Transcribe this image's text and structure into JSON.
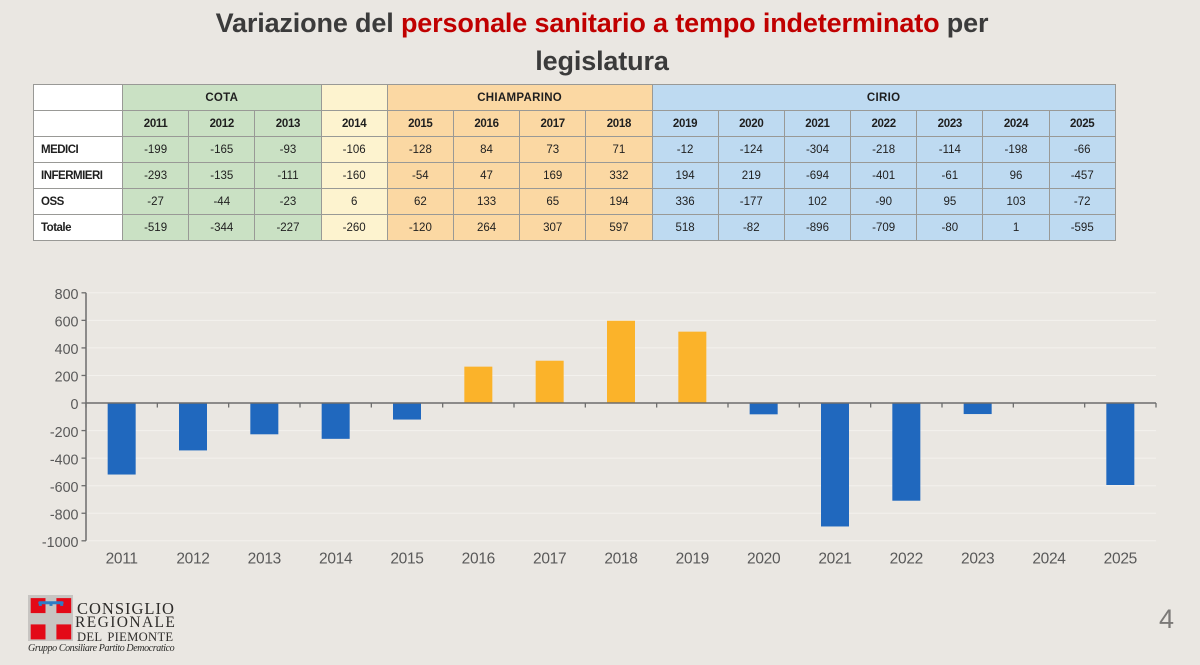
{
  "title": {
    "prefix": "Variazione del ",
    "highlight": "personale sanitario a tempo indeterminato",
    "suffix": " per",
    "line2": "legislatura",
    "highlight_color": "#c00000"
  },
  "table": {
    "groups": [
      {
        "label": "COTA",
        "color": "#cae1c4",
        "years": [
          "2011",
          "2012",
          "2013"
        ]
      },
      {
        "label": "",
        "color": "#fdf3cf",
        "years": [
          "2014"
        ]
      },
      {
        "label": "CHIAMPARINO",
        "color": "#fbd8a3",
        "years": [
          "2015",
          "2016",
          "2017",
          "2018"
        ]
      },
      {
        "label": "CIRIO",
        "color": "#bedaf1",
        "years": [
          "2019",
          "2020",
          "2021",
          "2022",
          "2023",
          "2024",
          "2025"
        ]
      }
    ],
    "rows": [
      {
        "label": "MEDICI",
        "values": [
          -199,
          -165,
          -93,
          -106,
          -128,
          84,
          73,
          71,
          -12,
          -124,
          -304,
          -218,
          -114,
          -198,
          -66
        ]
      },
      {
        "label": "INFERMIERI",
        "values": [
          -293,
          -135,
          -111,
          -160,
          -54,
          47,
          169,
          332,
          194,
          219,
          -694,
          -401,
          -61,
          96,
          -457
        ]
      },
      {
        "label": "OSS",
        "values": [
          -27,
          -44,
          -23,
          6,
          62,
          133,
          65,
          194,
          336,
          -177,
          102,
          -90,
          95,
          103,
          -72
        ]
      },
      {
        "label": "Totale",
        "values": [
          -519,
          -344,
          -227,
          -260,
          -120,
          264,
          307,
          597,
          518,
          -82,
          -896,
          -709,
          -80,
          1,
          -595
        ]
      }
    ]
  },
  "chart_data": {
    "type": "bar",
    "categories": [
      "2011",
      "2012",
      "2013",
      "2014",
      "2015",
      "2016",
      "2017",
      "2018",
      "2019",
      "2020",
      "2021",
      "2022",
      "2023",
      "2024",
      "2025"
    ],
    "values": [
      -519,
      -344,
      -227,
      -260,
      -120,
      264,
      307,
      597,
      518,
      -82,
      -896,
      -709,
      -80,
      1,
      -595
    ],
    "title": "",
    "xlabel": "",
    "ylabel": "",
    "ylim": [
      -1000,
      800
    ],
    "ytick_step": 200,
    "positive_color": "#fbb32a",
    "negative_color": "#2068be",
    "axis_color": "#6d6d6d",
    "label_color": "#595959",
    "gridline_color": "#f3f1ed",
    "legend": "none",
    "grid": "horizontal-subtle"
  },
  "footer": {
    "logo_line1": "CONSIGLIO",
    "logo_line2": "REGIONALE",
    "logo_line3": "DEL PIEMONTE",
    "logo_sub": "Gruppo Consiliare Partito Democratico",
    "page_number": "4"
  }
}
